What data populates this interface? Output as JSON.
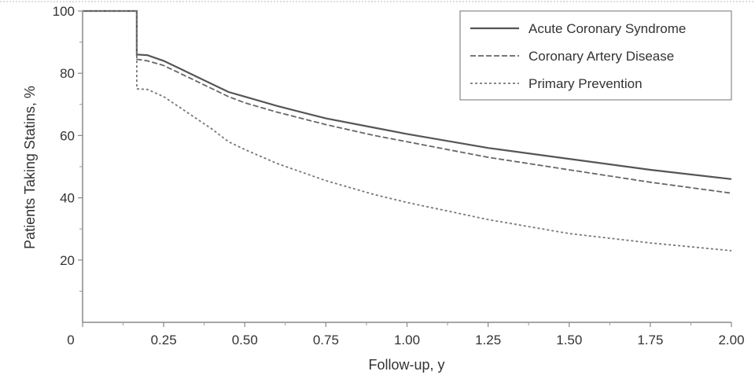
{
  "chart_data": {
    "type": "line",
    "xlabel": "Follow-up, y",
    "ylabel": "Patients Taking Statins, %",
    "xlim": [
      0,
      2.0
    ],
    "ylim": [
      0,
      100
    ],
    "x_ticks": [
      "0",
      "0.25",
      "0.50",
      "0.75",
      "1.00",
      "1.25",
      "1.50",
      "1.75",
      "2.00"
    ],
    "y_ticks": [
      "20",
      "40",
      "60",
      "80",
      "100"
    ],
    "legend_position": "top-right",
    "series": [
      {
        "name": "Acute Coronary Syndrome",
        "color": "#555555",
        "points": [
          [
            0,
            100
          ],
          [
            0.167,
            100
          ],
          [
            0.167,
            86
          ],
          [
            0.2,
            85.8
          ],
          [
            0.25,
            84
          ],
          [
            0.3,
            81.5
          ],
          [
            0.35,
            79
          ],
          [
            0.4,
            76.5
          ],
          [
            0.45,
            74
          ],
          [
            0.5,
            72.5
          ],
          [
            0.6,
            69.5
          ],
          [
            0.75,
            65.5
          ],
          [
            0.9,
            62.5
          ],
          [
            1.0,
            60.5
          ],
          [
            1.25,
            56
          ],
          [
            1.5,
            52.5
          ],
          [
            1.75,
            49
          ],
          [
            2.0,
            46
          ]
        ]
      },
      {
        "name": "Coronary Artery Disease",
        "color": "#666666",
        "points": [
          [
            0,
            100
          ],
          [
            0.167,
            100
          ],
          [
            0.167,
            84.5
          ],
          [
            0.2,
            84
          ],
          [
            0.25,
            82.5
          ],
          [
            0.3,
            80
          ],
          [
            0.35,
            77.5
          ],
          [
            0.4,
            75
          ],
          [
            0.45,
            72.5
          ],
          [
            0.5,
            70.5
          ],
          [
            0.6,
            67.5
          ],
          [
            0.75,
            63.5
          ],
          [
            0.9,
            60
          ],
          [
            1.0,
            58
          ],
          [
            1.25,
            53
          ],
          [
            1.5,
            49
          ],
          [
            1.75,
            45
          ],
          [
            2.0,
            41.5
          ]
        ]
      },
      {
        "name": "Primary Prevention",
        "color": "#777777",
        "points": [
          [
            0,
            100
          ],
          [
            0.167,
            100
          ],
          [
            0.167,
            75
          ],
          [
            0.2,
            74.8
          ],
          [
            0.25,
            72.5
          ],
          [
            0.3,
            69
          ],
          [
            0.35,
            65.5
          ],
          [
            0.4,
            62
          ],
          [
            0.45,
            58
          ],
          [
            0.5,
            55.5
          ],
          [
            0.6,
            51
          ],
          [
            0.75,
            45.5
          ],
          [
            0.9,
            41
          ],
          [
            1.0,
            38.5
          ],
          [
            1.25,
            33
          ],
          [
            1.5,
            28.5
          ],
          [
            1.75,
            25.5
          ],
          [
            2.0,
            23
          ]
        ]
      }
    ]
  }
}
